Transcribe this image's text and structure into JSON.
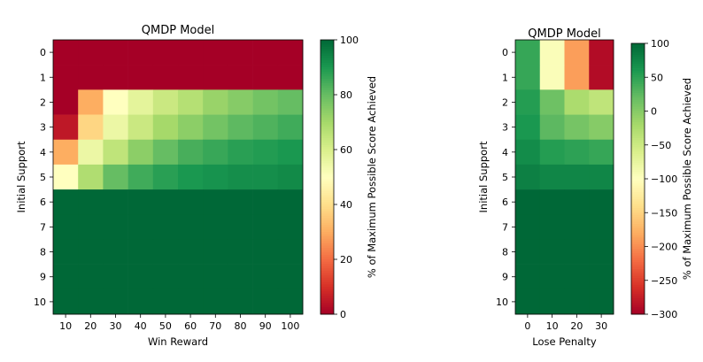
{
  "chart_data": [
    {
      "type": "heatmap",
      "title": "QMDP Model",
      "xlabel": "Win Reward",
      "ylabel": "Initial Support",
      "x": [
        10,
        20,
        30,
        40,
        50,
        60,
        70,
        80,
        90,
        100
      ],
      "y": [
        0,
        1,
        2,
        3,
        4,
        5,
        6,
        7,
        8,
        9,
        10
      ],
      "values": [
        [
          0,
          0,
          0,
          0,
          0,
          0,
          0,
          0,
          0,
          0
        ],
        [
          0,
          0,
          0,
          0,
          0,
          0,
          0,
          0,
          0,
          0
        ],
        [
          0,
          30,
          50,
          57,
          63,
          67,
          72,
          75,
          78,
          80
        ],
        [
          5,
          38,
          55,
          63,
          70,
          74,
          78,
          81,
          83,
          85
        ],
        [
          30,
          55,
          65,
          74,
          80,
          84,
          86,
          88,
          89,
          90
        ],
        [
          50,
          68,
          80,
          85,
          88,
          90,
          91,
          92,
          92,
          93
        ],
        [
          100,
          100,
          100,
          100,
          100,
          100,
          100,
          100,
          100,
          100
        ],
        [
          100,
          100,
          100,
          100,
          100,
          100,
          100,
          100,
          100,
          100
        ],
        [
          100,
          100,
          100,
          100,
          100,
          100,
          100,
          100,
          100,
          100
        ],
        [
          100,
          100,
          100,
          100,
          100,
          100,
          100,
          100,
          100,
          100
        ],
        [
          100,
          100,
          100,
          100,
          100,
          100,
          100,
          100,
          100,
          100
        ]
      ],
      "colorbar": {
        "label": "% of Maximum Possible Score Achieved",
        "range": [
          0,
          100
        ],
        "ticks": [
          0,
          20,
          40,
          60,
          80,
          100
        ]
      },
      "colormap": "RdYlGn",
      "grid": false
    },
    {
      "type": "heatmap",
      "title": "QMDP Model",
      "xlabel": "Lose Penalty",
      "ylabel": "Initial Support",
      "x": [
        0,
        10,
        20,
        30
      ],
      "y": [
        0,
        1,
        2,
        3,
        4,
        5,
        6,
        7,
        8,
        9,
        10
      ],
      "values": [
        [
          45,
          -95,
          -190,
          -290
        ],
        [
          45,
          -95,
          -190,
          -290
        ],
        [
          55,
          15,
          -25,
          -40
        ],
        [
          60,
          25,
          10,
          0
        ],
        [
          70,
          55,
          50,
          45
        ],
        [
          80,
          75,
          75,
          75
        ],
        [
          100,
          100,
          100,
          100
        ],
        [
          100,
          100,
          100,
          100
        ],
        [
          100,
          100,
          100,
          100
        ],
        [
          100,
          100,
          100,
          100
        ],
        [
          100,
          100,
          100,
          100
        ]
      ],
      "colorbar": {
        "label": "% of Maximum Possible Score Achieved",
        "range": [
          -300,
          100
        ],
        "ticks": [
          -300,
          -250,
          -200,
          -150,
          -100,
          -50,
          0,
          50,
          100
        ]
      },
      "colormap": "RdYlGn",
      "grid": false
    }
  ]
}
